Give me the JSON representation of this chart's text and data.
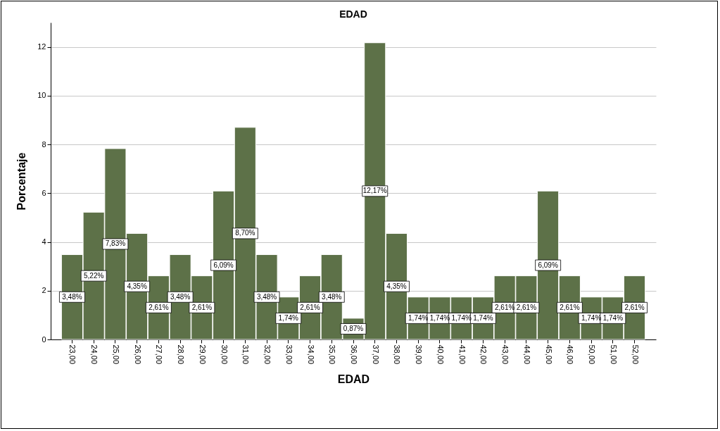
{
  "chart_data": {
    "type": "bar",
    "title": "EDAD",
    "xlabel": "EDAD",
    "ylabel": "Porcentaje",
    "categories": [
      "23,00",
      "24,00",
      "25,00",
      "26,00",
      "27,00",
      "28,00",
      "29,00",
      "30,00",
      "31,00",
      "32,00",
      "33,00",
      "34,00",
      "35,00",
      "36,00",
      "37,00",
      "38,00",
      "39,00",
      "40,00",
      "41,00",
      "42,00",
      "43,00",
      "44,00",
      "45,00",
      "46,00",
      "50,00",
      "51,00",
      "52,00"
    ],
    "values": [
      3.48,
      5.22,
      7.83,
      4.35,
      2.61,
      3.48,
      2.61,
      6.09,
      8.7,
      3.48,
      1.74,
      2.61,
      3.48,
      0.87,
      12.17,
      4.35,
      1.74,
      1.74,
      1.74,
      1.74,
      2.61,
      2.61,
      6.09,
      2.61,
      1.74,
      1.74,
      2.61
    ],
    "value_labels": [
      "3,48%",
      "5,22%",
      "7,83%",
      "4,35%",
      "2,61%",
      "3,48%",
      "2,61%",
      "6,09%",
      "8,70%",
      "3,48%",
      "1,74%",
      "2,61%",
      "3,48%",
      "0,87%",
      "12,17%",
      "4,35%",
      "1,74%",
      "1,74%",
      "1,74%",
      "1,74%",
      "2,61%",
      "2,61%",
      "6,09%",
      "2,61%",
      "1,74%",
      "1,74%",
      "2,61%"
    ],
    "color": "#5d7148",
    "ylim": [
      0,
      13
    ],
    "yticks": [
      0,
      2,
      4,
      6,
      8,
      10,
      12
    ],
    "grid": "y"
  }
}
